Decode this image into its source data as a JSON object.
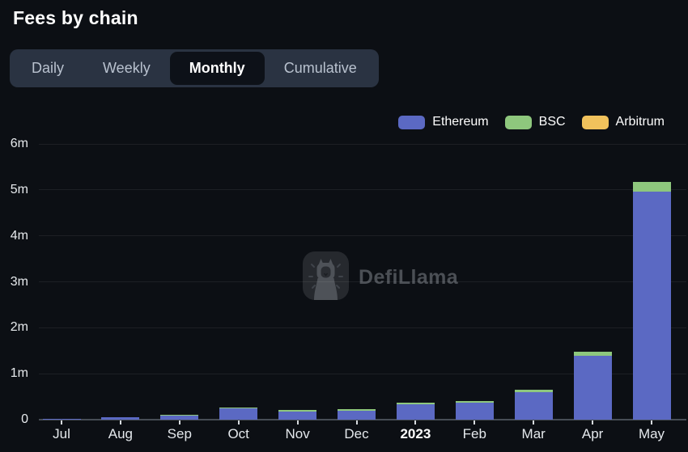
{
  "header": {
    "title": "Fees by chain"
  },
  "tabs": {
    "items": [
      {
        "label": "Daily",
        "active": false
      },
      {
        "label": "Weekly",
        "active": false
      },
      {
        "label": "Monthly",
        "active": true
      },
      {
        "label": "Cumulative",
        "active": false
      }
    ]
  },
  "watermark": {
    "text": "DefiLlama"
  },
  "chart_data": {
    "type": "bar",
    "stacked": true,
    "title": "Fees by chain (Monthly)",
    "categories": [
      "Jul",
      "Aug",
      "Sep",
      "Oct",
      "Nov",
      "Dec",
      "2023",
      "Feb",
      "Mar",
      "Apr",
      "May"
    ],
    "emphasized_category": "2023",
    "series": [
      {
        "name": "Ethereum",
        "color": "#5b69c3",
        "values": [
          0.01,
          0.05,
          0.08,
          0.24,
          0.18,
          0.2,
          0.33,
          0.37,
          0.6,
          1.39,
          4.97
        ]
      },
      {
        "name": "BSC",
        "color": "#8ec77d",
        "values": [
          0.005,
          0.01,
          0.02,
          0.02,
          0.03,
          0.03,
          0.04,
          0.03,
          0.05,
          0.08,
          0.21
        ]
      },
      {
        "name": "Arbitrum",
        "color": "#f1c25c",
        "values": [
          0,
          0,
          0,
          0,
          0,
          0,
          0,
          0,
          0,
          0,
          0
        ]
      }
    ],
    "y_ticks": [
      {
        "value": 0,
        "label": "0"
      },
      {
        "value": 1,
        "label": "1m"
      },
      {
        "value": 2,
        "label": "2m"
      },
      {
        "value": 3,
        "label": "3m"
      },
      {
        "value": 4,
        "label": "4m"
      },
      {
        "value": 5,
        "label": "5m"
      },
      {
        "value": 6,
        "label": "6m"
      }
    ],
    "ylim": [
      0,
      6
    ],
    "ylabel": "",
    "xlabel": "",
    "grid": "horizontal",
    "legend_position": "top-right"
  }
}
